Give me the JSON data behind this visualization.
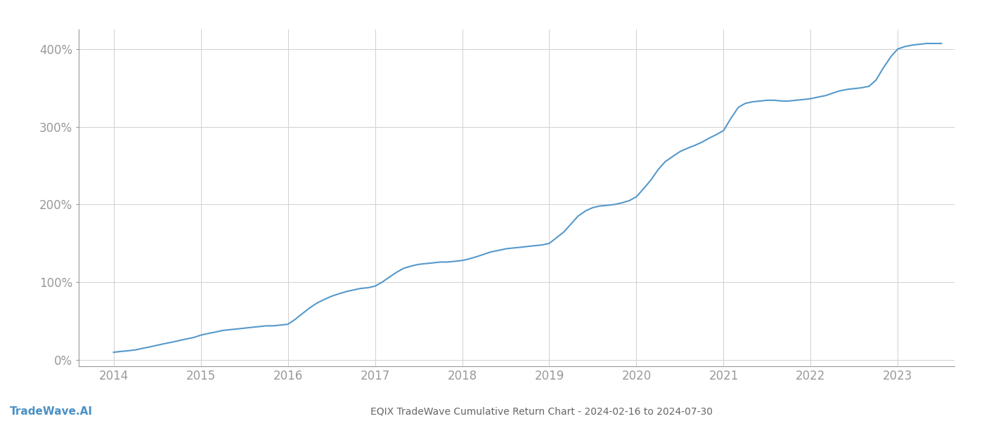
{
  "title": "EQIX TradeWave Cumulative Return Chart - 2024-02-16 to 2024-07-30",
  "watermark": "TradeWave.AI",
  "line_color": "#5599cc",
  "background_color": "#ffffff",
  "grid_color": "#d0d0d0",
  "x_years": [
    2014,
    2015,
    2016,
    2017,
    2018,
    2019,
    2020,
    2021,
    2022,
    2023
  ],
  "y_ticks": [
    0,
    100,
    200,
    300,
    400
  ],
  "xlim": [
    2013.6,
    2023.65
  ],
  "ylim": [
    -8,
    425
  ],
  "data_x": [
    2014.0,
    2014.08,
    2014.17,
    2014.25,
    2014.33,
    2014.42,
    2014.5,
    2014.58,
    2014.67,
    2014.75,
    2014.83,
    2014.92,
    2015.0,
    2015.08,
    2015.17,
    2015.25,
    2015.33,
    2015.42,
    2015.5,
    2015.58,
    2015.67,
    2015.75,
    2015.83,
    2015.92,
    2016.0,
    2016.08,
    2016.17,
    2016.25,
    2016.33,
    2016.42,
    2016.5,
    2016.58,
    2016.67,
    2016.75,
    2016.83,
    2016.92,
    2017.0,
    2017.08,
    2017.17,
    2017.25,
    2017.33,
    2017.42,
    2017.5,
    2017.58,
    2017.67,
    2017.75,
    2017.83,
    2017.92,
    2018.0,
    2018.08,
    2018.17,
    2018.25,
    2018.33,
    2018.42,
    2018.5,
    2018.58,
    2018.67,
    2018.75,
    2018.83,
    2018.92,
    2019.0,
    2019.08,
    2019.17,
    2019.25,
    2019.33,
    2019.42,
    2019.5,
    2019.58,
    2019.67,
    2019.75,
    2019.83,
    2019.92,
    2020.0,
    2020.08,
    2020.17,
    2020.25,
    2020.33,
    2020.42,
    2020.5,
    2020.58,
    2020.67,
    2020.75,
    2020.83,
    2020.92,
    2021.0,
    2021.08,
    2021.17,
    2021.25,
    2021.33,
    2021.42,
    2021.5,
    2021.58,
    2021.67,
    2021.75,
    2021.83,
    2021.92,
    2022.0,
    2022.08,
    2022.17,
    2022.25,
    2022.33,
    2022.42,
    2022.5,
    2022.58,
    2022.67,
    2022.75,
    2022.83,
    2022.92,
    2023.0,
    2023.08,
    2023.17,
    2023.25,
    2023.33,
    2023.42,
    2023.5
  ],
  "data_y": [
    10,
    11,
    12,
    13,
    15,
    17,
    19,
    21,
    23,
    25,
    27,
    29,
    32,
    34,
    36,
    38,
    39,
    40,
    41,
    42,
    43,
    44,
    44,
    45,
    46,
    52,
    60,
    67,
    73,
    78,
    82,
    85,
    88,
    90,
    92,
    93,
    95,
    100,
    107,
    113,
    118,
    121,
    123,
    124,
    125,
    126,
    126,
    127,
    128,
    130,
    133,
    136,
    139,
    141,
    143,
    144,
    145,
    146,
    147,
    148,
    150,
    157,
    165,
    175,
    185,
    192,
    196,
    198,
    199,
    200,
    202,
    205,
    210,
    220,
    232,
    245,
    255,
    262,
    268,
    272,
    276,
    280,
    285,
    290,
    295,
    310,
    325,
    330,
    332,
    333,
    334,
    334,
    333,
    333,
    334,
    335,
    336,
    338,
    340,
    343,
    346,
    348,
    349,
    350,
    352,
    360,
    375,
    390,
    400,
    403,
    405,
    406,
    407,
    407,
    407
  ]
}
